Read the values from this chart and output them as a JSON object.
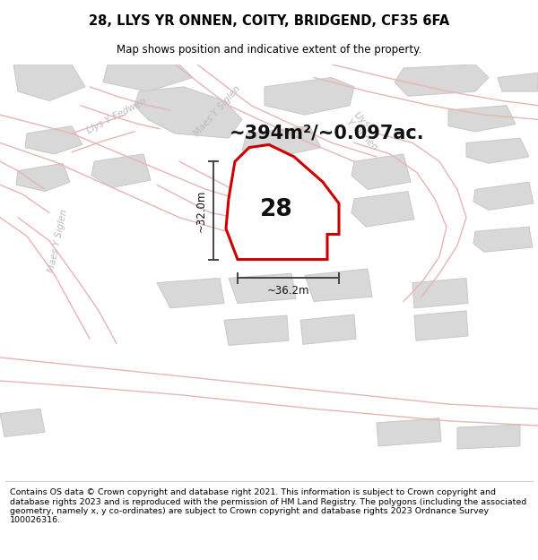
{
  "title": "28, LLYS YR ONNEN, COITY, BRIDGEND, CF35 6FA",
  "subtitle": "Map shows position and indicative extent of the property.",
  "footer": "Contains OS data © Crown copyright and database right 2021. This information is subject to Crown copyright and database rights 2023 and is reproduced with the permission of HM Land Registry. The polygons (including the associated geometry, namely x, y co-ordinates) are subject to Crown copyright and database rights 2023 Ordnance Survey 100026316.",
  "area_label": "~394m²/~0.097ac.",
  "dim_height": "~32.0m",
  "dim_width": "~36.2m",
  "plot_number": "28",
  "map_bg": "#f5f5f5",
  "road_outline_color": "#e8b4b4",
  "building_color": "#d8d8d8",
  "building_edge": "#c8c8c8",
  "highlight_color": "#cc0000",
  "street_label_color": "#bbbbbb",
  "title_color": "#000000",
  "footer_color": "#000000",
  "dim_line_color": "#444444"
}
